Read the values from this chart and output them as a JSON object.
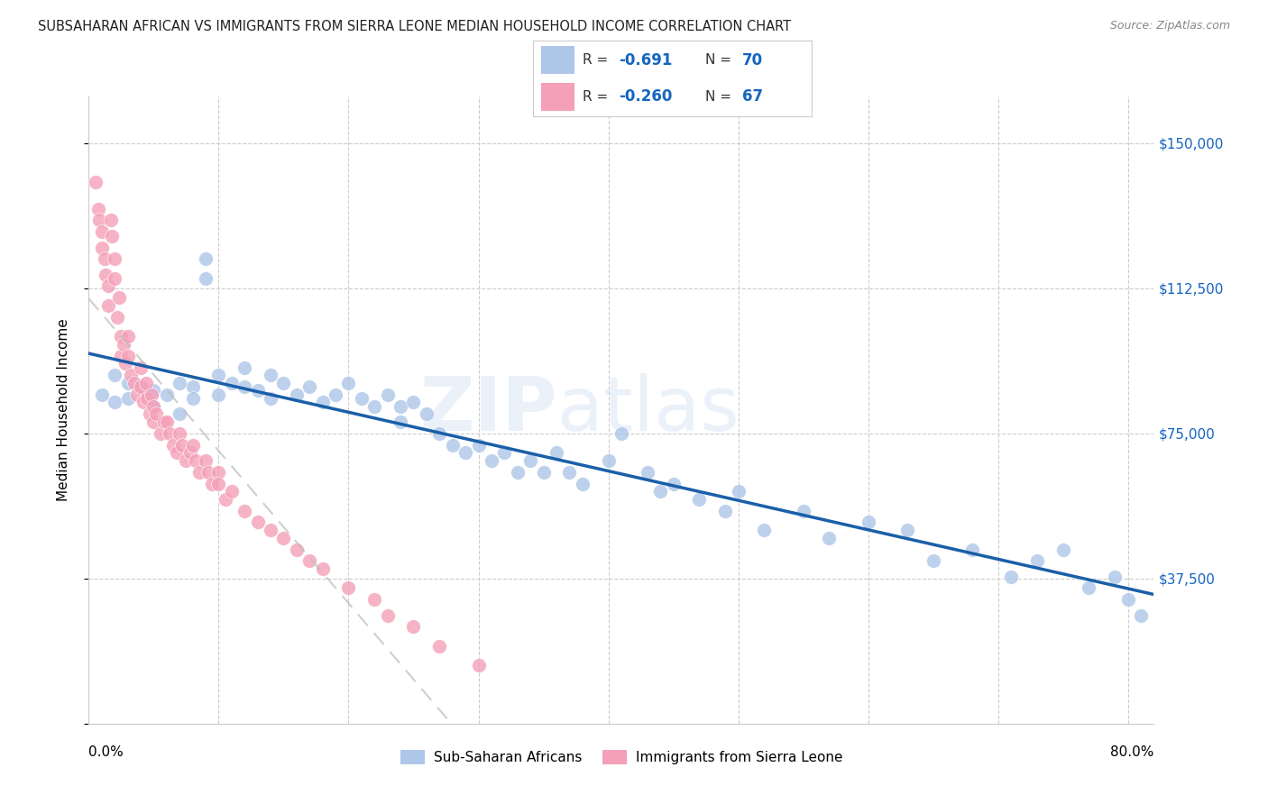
{
  "title": "SUBSAHARAN AFRICAN VS IMMIGRANTS FROM SIERRA LEONE MEDIAN HOUSEHOLD INCOME CORRELATION CHART",
  "source": "Source: ZipAtlas.com",
  "ylabel": "Median Household Income",
  "xlim": [
    0.0,
    0.82
  ],
  "ylim": [
    0,
    162000
  ],
  "yticks": [
    0,
    37500,
    75000,
    112500,
    150000
  ],
  "xtick_positions": [
    0.0,
    0.1,
    0.2,
    0.3,
    0.4,
    0.5,
    0.6,
    0.7,
    0.8
  ],
  "color_blue": "#aec6e8",
  "color_pink": "#f4a0b8",
  "trendline_blue": "#1a5fa8",
  "trendline_pink": "#bbbbbb",
  "blue_r": "-0.691",
  "blue_n": "70",
  "pink_r": "-0.260",
  "pink_n": "67",
  "blue_x": [
    0.01,
    0.02,
    0.02,
    0.03,
    0.03,
    0.04,
    0.05,
    0.05,
    0.06,
    0.07,
    0.07,
    0.08,
    0.08,
    0.09,
    0.09,
    0.1,
    0.1,
    0.11,
    0.12,
    0.12,
    0.13,
    0.14,
    0.14,
    0.15,
    0.16,
    0.17,
    0.18,
    0.19,
    0.2,
    0.21,
    0.22,
    0.23,
    0.24,
    0.24,
    0.25,
    0.26,
    0.27,
    0.28,
    0.29,
    0.3,
    0.31,
    0.32,
    0.33,
    0.34,
    0.35,
    0.36,
    0.37,
    0.38,
    0.4,
    0.41,
    0.43,
    0.44,
    0.45,
    0.47,
    0.49,
    0.5,
    0.52,
    0.55,
    0.57,
    0.6,
    0.63,
    0.65,
    0.68,
    0.71,
    0.73,
    0.75,
    0.77,
    0.79,
    0.8,
    0.81
  ],
  "blue_y": [
    85000,
    90000,
    83000,
    88000,
    84000,
    87000,
    86000,
    82000,
    85000,
    88000,
    80000,
    87000,
    84000,
    120000,
    115000,
    90000,
    85000,
    88000,
    92000,
    87000,
    86000,
    90000,
    84000,
    88000,
    85000,
    87000,
    83000,
    85000,
    88000,
    84000,
    82000,
    85000,
    82000,
    78000,
    83000,
    80000,
    75000,
    72000,
    70000,
    72000,
    68000,
    70000,
    65000,
    68000,
    65000,
    70000,
    65000,
    62000,
    68000,
    75000,
    65000,
    60000,
    62000,
    58000,
    55000,
    60000,
    50000,
    55000,
    48000,
    52000,
    50000,
    42000,
    45000,
    38000,
    42000,
    45000,
    35000,
    38000,
    32000,
    28000
  ],
  "pink_x": [
    0.005,
    0.007,
    0.008,
    0.01,
    0.01,
    0.012,
    0.013,
    0.015,
    0.015,
    0.017,
    0.018,
    0.02,
    0.02,
    0.022,
    0.023,
    0.025,
    0.025,
    0.027,
    0.028,
    0.03,
    0.03,
    0.032,
    0.035,
    0.037,
    0.04,
    0.04,
    0.042,
    0.044,
    0.045,
    0.047,
    0.048,
    0.05,
    0.05,
    0.052,
    0.055,
    0.058,
    0.06,
    0.062,
    0.065,
    0.068,
    0.07,
    0.072,
    0.075,
    0.078,
    0.08,
    0.082,
    0.085,
    0.09,
    0.092,
    0.095,
    0.1,
    0.1,
    0.105,
    0.11,
    0.12,
    0.13,
    0.14,
    0.15,
    0.16,
    0.17,
    0.18,
    0.2,
    0.22,
    0.23,
    0.25,
    0.27,
    0.3
  ],
  "pink_y": [
    140000,
    133000,
    130000,
    127000,
    123000,
    120000,
    116000,
    113000,
    108000,
    130000,
    126000,
    120000,
    115000,
    105000,
    110000,
    100000,
    95000,
    98000,
    93000,
    100000,
    95000,
    90000,
    88000,
    85000,
    92000,
    87000,
    83000,
    88000,
    84000,
    80000,
    85000,
    82000,
    78000,
    80000,
    75000,
    78000,
    78000,
    75000,
    72000,
    70000,
    75000,
    72000,
    68000,
    70000,
    72000,
    68000,
    65000,
    68000,
    65000,
    62000,
    65000,
    62000,
    58000,
    60000,
    55000,
    52000,
    50000,
    48000,
    45000,
    42000,
    40000,
    35000,
    32000,
    28000,
    25000,
    20000,
    15000
  ]
}
